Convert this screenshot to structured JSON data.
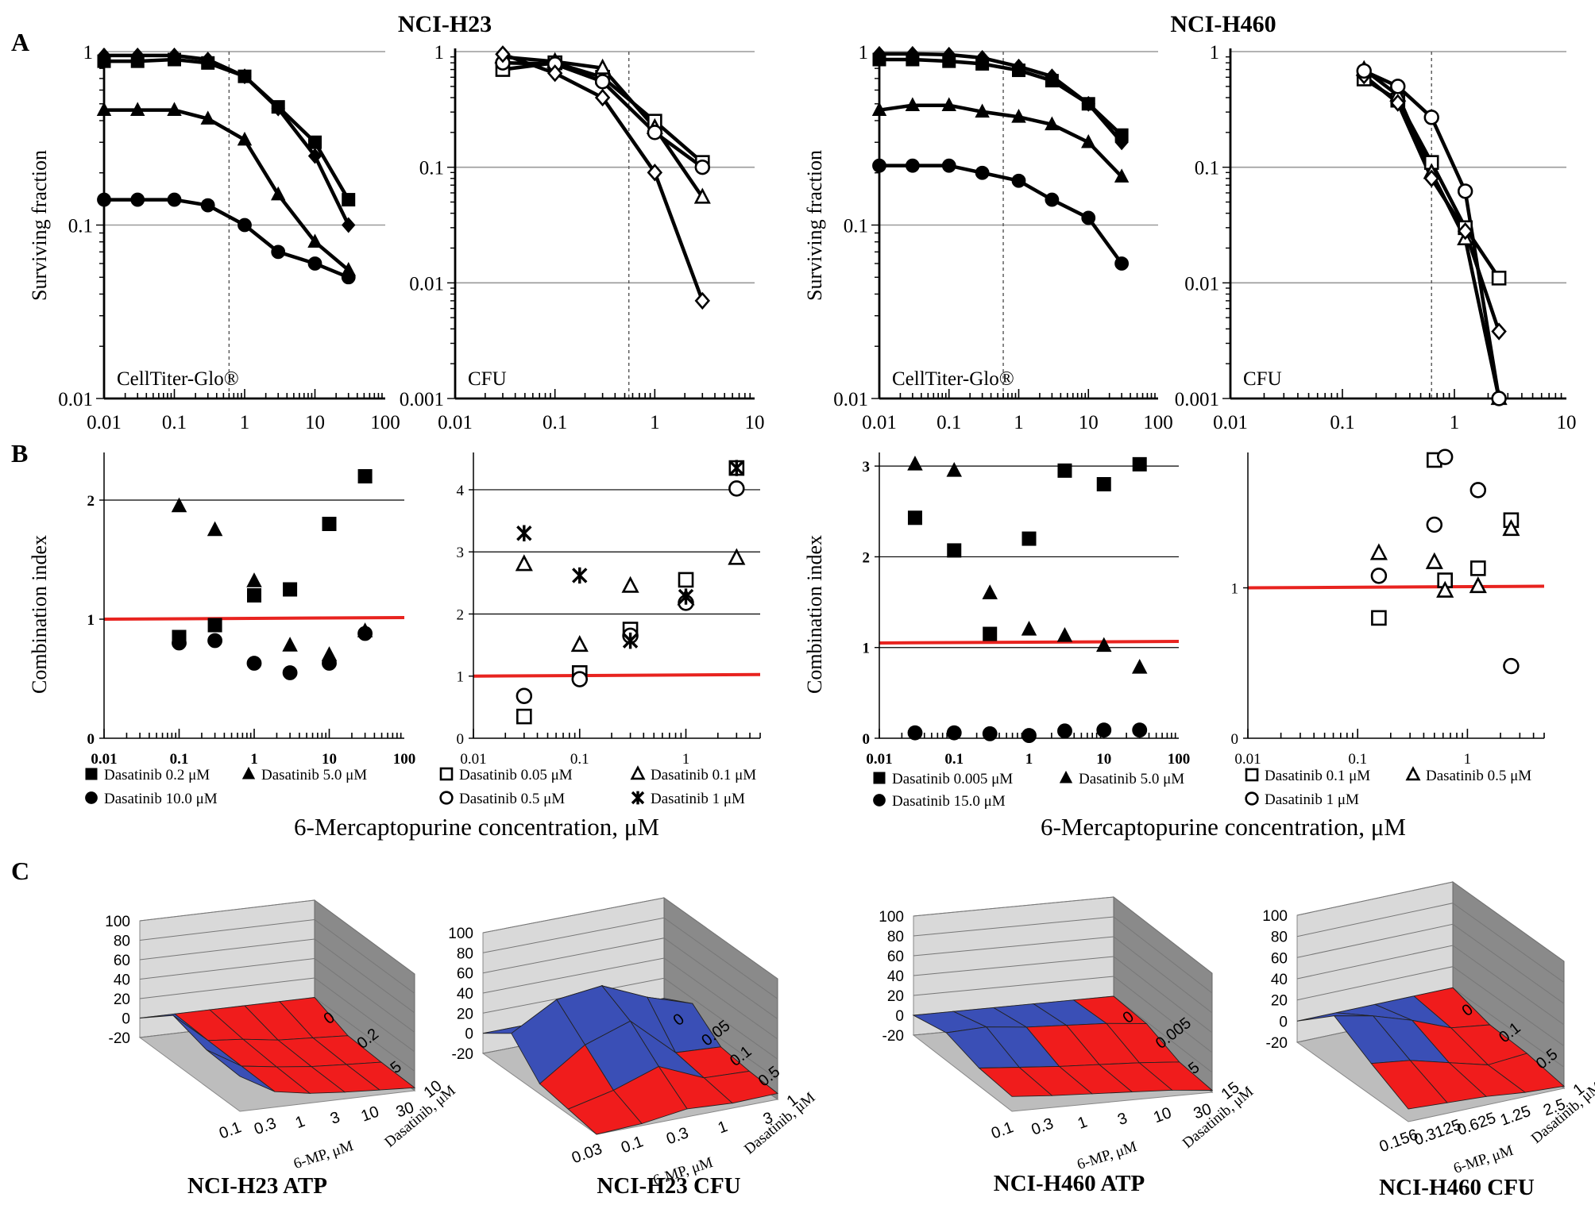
{
  "figure": {
    "header_left": "NCI-H23",
    "header_right": "NCI-H460",
    "panel_labels": [
      "A",
      "B",
      "C"
    ],
    "ylabel_A": "Surviving fraction",
    "ylabel_B": "Combination index",
    "xlabel_B": "6-Mercaptopurine concentration, μM"
  },
  "colors": {
    "line": "#000000",
    "grid": "#9a9a9a",
    "red_line": "#e8231f",
    "surface_red": "#f01c1c",
    "surface_blue": "#3a4fb6",
    "wall_gray": "#8a8a8a"
  },
  "chart_data": [
    {
      "id": "A1",
      "type": "line",
      "scale": "loglog",
      "annotation": "CellTiter-Glo®",
      "xlim": [
        0.01,
        100
      ],
      "ylim": [
        0.01,
        1
      ],
      "xticks": [
        "0.01",
        "0.1",
        "1",
        "10",
        "100"
      ],
      "yticks": [
        "0.01",
        "0.1",
        "1"
      ],
      "gridlines": [
        1,
        0.1
      ],
      "vline": 0.6,
      "x": [
        0.01,
        0.03,
        0.1,
        0.3,
        1,
        3,
        10,
        30
      ],
      "series": [
        {
          "marker": "square",
          "values": [
            0.88,
            0.88,
            0.9,
            0.86,
            0.72,
            0.48,
            0.3,
            0.14
          ]
        },
        {
          "marker": "diamond",
          "values": [
            0.95,
            0.95,
            0.95,
            0.9,
            0.72,
            0.47,
            0.25,
            0.1
          ]
        },
        {
          "marker": "triangle",
          "values": [
            0.46,
            0.46,
            0.46,
            0.41,
            0.31,
            0.15,
            0.08,
            0.055
          ]
        },
        {
          "marker": "circle",
          "values": [
            0.14,
            0.14,
            0.14,
            0.13,
            0.1,
            0.07,
            0.06,
            0.05
          ]
        }
      ]
    },
    {
      "id": "A2",
      "type": "line",
      "scale": "loglog",
      "annotation": "CFU",
      "xlim": [
        0.01,
        10
      ],
      "ylim": [
        0.001,
        1
      ],
      "xticks": [
        "0.01",
        "0.1",
        "1",
        "10"
      ],
      "yticks": [
        "0.001",
        "0.01",
        "0.1",
        "1"
      ],
      "gridlines": [
        1,
        0.1,
        0.01
      ],
      "vline": 0.55,
      "x": [
        0.03,
        0.1,
        0.3,
        1,
        3
      ],
      "series": [
        {
          "marker": "square-open",
          "values": [
            0.7,
            0.8,
            0.6,
            0.25,
            0.11
          ]
        },
        {
          "marker": "triangle-open",
          "values": [
            0.9,
            0.82,
            0.72,
            0.22,
            0.055
          ]
        },
        {
          "marker": "circle-open",
          "values": [
            0.8,
            0.78,
            0.55,
            0.2,
            0.1
          ]
        },
        {
          "marker": "diamond-open",
          "values": [
            0.95,
            0.65,
            0.4,
            0.09,
            0.007
          ]
        }
      ]
    },
    {
      "id": "A3",
      "type": "line",
      "scale": "loglog",
      "annotation": "CellTiter-Glo®",
      "xlim": [
        0.01,
        100
      ],
      "ylim": [
        0.01,
        1
      ],
      "xticks": [
        "0.01",
        "0.1",
        "1",
        "10",
        "100"
      ],
      "yticks": [
        "0.01",
        "0.1",
        "1"
      ],
      "gridlines": [
        1,
        0.1
      ],
      "vline": 0.6,
      "x": [
        0.01,
        0.03,
        0.1,
        0.3,
        1,
        3,
        10,
        30
      ],
      "series": [
        {
          "marker": "square",
          "values": [
            0.9,
            0.9,
            0.88,
            0.85,
            0.78,
            0.68,
            0.5,
            0.33
          ]
        },
        {
          "marker": "diamond",
          "values": [
            0.97,
            0.97,
            0.96,
            0.92,
            0.82,
            0.72,
            0.5,
            0.3
          ]
        },
        {
          "marker": "triangle",
          "values": [
            0.46,
            0.49,
            0.49,
            0.45,
            0.42,
            0.38,
            0.3,
            0.19
          ]
        },
        {
          "marker": "circle",
          "values": [
            0.22,
            0.22,
            0.22,
            0.2,
            0.18,
            0.14,
            0.11,
            0.06
          ]
        }
      ]
    },
    {
      "id": "A4",
      "type": "line",
      "scale": "loglog",
      "annotation": "CFU",
      "xlim": [
        0.01,
        10
      ],
      "ylim": [
        0.001,
        1
      ],
      "xticks": [
        "0.01",
        "0.1",
        "1",
        "10"
      ],
      "yticks": [
        "0.001",
        "0.01",
        "0.1",
        "1"
      ],
      "gridlines": [
        1,
        0.1,
        0.01
      ],
      "vline": 0.625,
      "x": [
        0.156,
        0.3125,
        0.625,
        1.25,
        2.5
      ],
      "series": [
        {
          "marker": "square-open",
          "values": [
            0.58,
            0.38,
            0.11,
            0.03,
            0.011
          ]
        },
        {
          "marker": "triangle-open",
          "values": [
            0.7,
            0.42,
            0.09,
            0.024,
            0.001
          ]
        },
        {
          "marker": "diamond-open",
          "values": [
            0.62,
            0.36,
            0.08,
            0.028,
            0.0038
          ]
        },
        {
          "marker": "circle-open",
          "values": [
            0.68,
            0.5,
            0.27,
            0.062,
            0.001
          ]
        }
      ]
    },
    {
      "id": "B1",
      "type": "scatter",
      "scale": "logx",
      "xlim": [
        0.01,
        100
      ],
      "ylim": [
        0,
        2.4
      ],
      "xticks": [
        "0.01",
        "0.1",
        "1",
        "10",
        "100"
      ],
      "yticks": [
        "0",
        "1",
        "2"
      ],
      "ytick_values": [
        0,
        1,
        2
      ],
      "gridlines": [
        2
      ],
      "refline": 1,
      "series": [
        {
          "name": "Dasatinib 0.2 μM",
          "marker": "square",
          "x": [
            0.1,
            0.3,
            1,
            3,
            10,
            30
          ],
          "values": [
            0.85,
            0.95,
            1.2,
            1.25,
            1.8,
            2.2
          ]
        },
        {
          "name": "Dasatinib 5.0 μM",
          "marker": "triangle",
          "x": [
            0.1,
            0.3,
            1,
            3,
            10,
            30
          ],
          "values": [
            1.95,
            1.75,
            1.32,
            0.78,
            0.7,
            0.9
          ]
        },
        {
          "name": "Dasatinib 10.0 μM",
          "marker": "circle",
          "x": [
            0.1,
            0.3,
            1,
            3,
            10,
            30
          ],
          "values": [
            0.8,
            0.82,
            0.63,
            0.55,
            0.63,
            0.88
          ]
        }
      ],
      "legend_rows": [
        [
          0,
          1
        ],
        [
          2
        ]
      ]
    },
    {
      "id": "B2",
      "type": "scatter",
      "scale": "logx",
      "xlim": [
        0.01,
        5
      ],
      "ylim": [
        0,
        4.6
      ],
      "xticks": [
        "0.01",
        "0.1",
        "1"
      ],
      "yticks": [
        "0",
        "1",
        "2",
        "3",
        "4"
      ],
      "ytick_values": [
        0,
        1,
        2,
        3,
        4
      ],
      "gridlines": [
        2,
        3,
        4
      ],
      "refline": 1,
      "series": [
        {
          "name": "Dasatinib 0.05 μM",
          "marker": "square-open",
          "x": [
            0.03,
            0.1,
            0.3,
            1,
            3
          ],
          "values": [
            0.35,
            1.05,
            1.75,
            2.55,
            4.35
          ]
        },
        {
          "name": "Dasatinib 0.1 μM",
          "marker": "triangle-open",
          "x": [
            0.03,
            0.1,
            0.3,
            1,
            3
          ],
          "values": [
            2.8,
            1.5,
            2.45,
            2.25,
            2.9
          ]
        },
        {
          "name": "Dasatinib 0.5 μM",
          "marker": "circle-open",
          "x": [
            0.03,
            0.1,
            0.3,
            1,
            3
          ],
          "values": [
            0.68,
            0.95,
            1.65,
            2.18,
            4.02
          ]
        },
        {
          "name": "Dasatinib 1 μM",
          "marker": "star",
          "x": [
            0.03,
            0.1,
            0.3,
            1,
            3
          ],
          "values": [
            3.3,
            2.62,
            1.57,
            2.28,
            4.35
          ]
        }
      ],
      "legend_rows": [
        [
          0,
          1
        ],
        [
          2,
          3
        ]
      ]
    },
    {
      "id": "B3",
      "type": "scatter",
      "scale": "logx",
      "xlim": [
        0.01,
        100
      ],
      "ylim": [
        0,
        3.15
      ],
      "xticks": [
        "0.01",
        "0.1",
        "1",
        "10",
        "100"
      ],
      "yticks": [
        "0",
        "1",
        "2",
        "3"
      ],
      "ytick_values": [
        0,
        1,
        2,
        3
      ],
      "gridlines": [
        1,
        2,
        3
      ],
      "refline": 1.05,
      "series": [
        {
          "name": "Dasatinib 0.005 μM",
          "marker": "square",
          "x": [
            0.03,
            0.1,
            0.3,
            1,
            3,
            10,
            30
          ],
          "values": [
            2.43,
            2.07,
            1.15,
            2.2,
            2.95,
            2.8,
            3.02
          ]
        },
        {
          "name": "Dasatinib 5.0 μM",
          "marker": "triangle",
          "x": [
            0.03,
            0.1,
            0.3,
            1,
            3,
            10,
            30
          ],
          "values": [
            3.02,
            2.95,
            1.6,
            1.2,
            1.13,
            1.02,
            0.78
          ]
        },
        {
          "name": "Dasatinib 15.0 μM",
          "marker": "circle",
          "x": [
            0.03,
            0.1,
            0.3,
            1,
            3,
            10,
            30
          ],
          "values": [
            0.06,
            0.06,
            0.05,
            0.03,
            0.08,
            0.09,
            0.09
          ]
        }
      ],
      "legend_rows": [
        [
          0,
          1
        ],
        [
          2
        ]
      ]
    },
    {
      "id": "B4",
      "type": "scatter",
      "scale": "logx",
      "xlim": [
        0.01,
        5
      ],
      "ylim": [
        0,
        1.9
      ],
      "xticks": [
        "0.01",
        "0.1",
        "1"
      ],
      "yticks": [
        "0",
        "1"
      ],
      "ytick_values": [
        0,
        1
      ],
      "gridlines": [],
      "refline": 1,
      "series": [
        {
          "name": "Dasatinib 0.1 μM",
          "marker": "square-open",
          "x": [
            0.156,
            0.5,
            0.625,
            1.25,
            2.5
          ],
          "values": [
            0.8,
            1.85,
            1.05,
            1.13,
            1.45
          ]
        },
        {
          "name": "Dasatinib 0.5 μM",
          "marker": "triangle-open",
          "x": [
            0.156,
            0.5,
            0.625,
            1.25,
            2.5
          ],
          "values": [
            1.23,
            1.17,
            0.98,
            1.01,
            1.39
          ]
        },
        {
          "name": "Dasatinib 1 μM",
          "marker": "circle-open",
          "x": [
            0.156,
            0.5,
            0.625,
            1.25,
            2.5
          ],
          "values": [
            1.08,
            1.42,
            1.87,
            1.65,
            0.48
          ]
        }
      ],
      "legend_rows": [
        [
          0,
          1
        ],
        [
          2
        ]
      ]
    },
    {
      "id": "C1",
      "type": "surface",
      "title": "NCI-H23 ATP",
      "zticks": [
        "100",
        "80",
        "60",
        "40",
        "20",
        "0",
        "-20"
      ],
      "x_ticks": [
        "0.1",
        "0.3",
        "1",
        "3",
        "10",
        "30"
      ],
      "x_label": "6-MP, μM",
      "y_ticks": [
        "0",
        "0.2",
        "5",
        "10"
      ],
      "y_label": "Dasatinib, μM",
      "z": [
        [
          0,
          0,
          0,
          0,
          0,
          0
        ],
        [
          28,
          -2,
          -5,
          -10,
          -12,
          -14
        ],
        [
          18,
          -3,
          -8,
          -12,
          -14,
          -16
        ],
        [
          16,
          -4,
          -10,
          -13,
          -15,
          -17
        ]
      ]
    },
    {
      "id": "C2",
      "type": "surface",
      "title": "NCI-H23 CFU",
      "zticks": [
        "100",
        "80",
        "60",
        "40",
        "20",
        "0",
        "-20"
      ],
      "x_ticks": [
        "0.03",
        "0.1",
        "0.3",
        "1",
        "3"
      ],
      "x_label": "6-MP, μM",
      "y_ticks": [
        "0",
        "0.05",
        "0.1",
        "0.5",
        "1"
      ],
      "y_label": "Dasatinib, μM",
      "z": [
        [
          0,
          0,
          0,
          0,
          0
        ],
        [
          20,
          45,
          50,
          30,
          15
        ],
        [
          -10,
          20,
          35,
          -5,
          -8
        ],
        [
          -15,
          -5,
          10,
          -10,
          -12
        ],
        [
          -20,
          -18,
          -12,
          -15,
          -14
        ]
      ]
    },
    {
      "id": "C3",
      "type": "surface",
      "title": "NCI-H460 ATP",
      "zticks": [
        "100",
        "80",
        "60",
        "40",
        "20",
        "0",
        "-20"
      ],
      "x_ticks": [
        "0.1",
        "0.3",
        "1",
        "3",
        "10",
        "30"
      ],
      "x_label": "6-MP, μM",
      "y_ticks": [
        "0",
        "0.005",
        "5",
        "15"
      ],
      "y_label": "Dasatinib, μM",
      "z": [
        [
          0,
          0,
          0,
          0,
          0,
          0
        ],
        [
          8,
          10,
          6,
          4,
          2,
          -2
        ],
        [
          -2,
          -5,
          -8,
          -10,
          -12,
          -15
        ],
        [
          -5,
          -8,
          -10,
          -12,
          -14,
          -18
        ]
      ]
    },
    {
      "id": "C4",
      "type": "surface",
      "title": "NCI-H460 CFU",
      "zticks": [
        "100",
        "80",
        "60",
        "40",
        "20",
        "0",
        "-20"
      ],
      "x_ticks": [
        "0.156",
        "0.3125",
        "0.625",
        "1.25",
        "2.5"
      ],
      "x_label": "6-MP, μM",
      "y_ticks": [
        "0",
        "0.1",
        "0.5",
        "1"
      ],
      "y_label": "Dasatinib, μM",
      "z": [
        [
          0,
          0,
          0,
          0,
          0
        ],
        [
          30,
          22,
          10,
          -5,
          -10
        ],
        [
          10,
          5,
          -5,
          -15,
          -12
        ],
        [
          -8,
          -10,
          -12,
          -16,
          -18
        ]
      ]
    }
  ]
}
